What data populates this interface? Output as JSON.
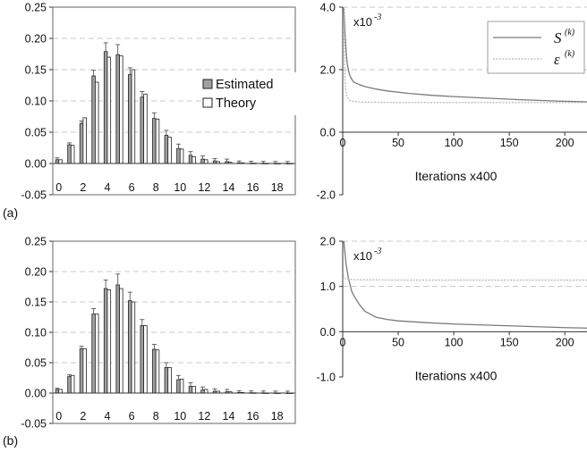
{
  "panels": [
    {
      "label": "(a)"
    },
    {
      "label": "(b)"
    }
  ],
  "chart_data": [
    {
      "id": "a-hist",
      "type": "bar",
      "categories": [
        "0",
        "1",
        "2",
        "3",
        "4",
        "5",
        "6",
        "7",
        "8",
        "9",
        "10",
        "11",
        "12",
        "13",
        "14",
        "15",
        "16",
        "17",
        "18",
        "19"
      ],
      "x_tick_labels": [
        "0",
        "2",
        "4",
        "6",
        "8",
        "10",
        "12",
        "14",
        "16",
        "18"
      ],
      "ylim": [
        -0.05,
        0.25
      ],
      "y_ticks": [
        "-0.05",
        "0.00",
        "0.05",
        "0.10",
        "0.15",
        "0.20",
        "0.25"
      ],
      "grid": true,
      "legend_position": "right",
      "series": [
        {
          "name": "Estimated",
          "color": "#a0a0a0",
          "values": [
            0.006,
            0.03,
            0.064,
            0.14,
            0.179,
            0.174,
            0.142,
            0.106,
            0.072,
            0.045,
            0.024,
            0.013,
            0.007,
            0.004,
            0.003,
            0.001,
            0.0005,
            0.0003,
            0.0002,
            0.0001
          ],
          "errors": [
            0.003,
            0.003,
            0.004,
            0.009,
            0.014,
            0.016,
            0.011,
            0.009,
            0.009,
            0.008,
            0.007,
            0.006,
            0.005,
            0.004,
            0.004,
            0.003,
            0.003,
            0.003,
            0.003,
            0.003
          ]
        },
        {
          "name": "Theory",
          "color": "#ffffff",
          "values": [
            0.006,
            0.029,
            0.073,
            0.13,
            0.17,
            0.172,
            0.15,
            0.111,
            0.071,
            0.042,
            0.023,
            0.011,
            0.006,
            0.003,
            0.002,
            0.001,
            0.0004,
            0.0002,
            0.0001,
            0.0001
          ]
        }
      ]
    },
    {
      "id": "a-conv",
      "type": "line",
      "xlabel": "Iterations x400",
      "xlim": [
        0,
        220
      ],
      "ylim": [
        -2.0,
        4.0
      ],
      "x_ticks": [
        "0",
        "50",
        "100",
        "150",
        "200"
      ],
      "y_ticks": [
        "-2.0",
        "0.0",
        "2.0",
        "4.0"
      ],
      "y_scale_note": "x10",
      "y_scale_exp": "-3",
      "grid": true,
      "legend_position": "top-right",
      "series": [
        {
          "name": "S",
          "name_sup": "(k)",
          "color": "#7a7a7a",
          "dash": "",
          "points": [
            [
              1,
              4.0
            ],
            [
              2,
              3.2
            ],
            [
              3,
              2.6
            ],
            [
              4,
              2.2
            ],
            [
              6,
              1.85
            ],
            [
              8,
              1.7
            ],
            [
              10,
              1.6
            ],
            [
              15,
              1.52
            ],
            [
              20,
              1.46
            ],
            [
              30,
              1.38
            ],
            [
              40,
              1.32
            ],
            [
              60,
              1.24
            ],
            [
              80,
              1.18
            ],
            [
              100,
              1.14
            ],
            [
              130,
              1.09
            ],
            [
              160,
              1.04
            ],
            [
              190,
              1.0
            ],
            [
              220,
              0.97
            ]
          ]
        },
        {
          "name": "ε",
          "name_sup": "(k)",
          "color": "#b8b8b8",
          "dash": "2 1.5",
          "points": [
            [
              1,
              4.0
            ],
            [
              1.5,
              2.6
            ],
            [
              2,
              1.7
            ],
            [
              3,
              1.3
            ],
            [
              4,
              1.12
            ],
            [
              6,
              1.02
            ],
            [
              10,
              0.98
            ],
            [
              20,
              0.96
            ],
            [
              50,
              0.95
            ],
            [
              100,
              0.95
            ],
            [
              150,
              0.95
            ],
            [
              220,
              0.95
            ]
          ]
        }
      ]
    },
    {
      "id": "b-hist",
      "type": "bar",
      "categories": [
        "0",
        "1",
        "2",
        "3",
        "4",
        "5",
        "6",
        "7",
        "8",
        "9",
        "10",
        "11",
        "12",
        "13",
        "14",
        "15",
        "16",
        "17",
        "18",
        "19"
      ],
      "x_tick_labels": [
        "0",
        "2",
        "4",
        "6",
        "8",
        "10",
        "12",
        "14",
        "16",
        "18"
      ],
      "ylim": [
        -0.05,
        0.25
      ],
      "y_ticks": [
        "-0.05",
        "0.00",
        "0.05",
        "0.10",
        "0.15",
        "0.20",
        "0.25"
      ],
      "grid": true,
      "series": [
        {
          "name": "Estimated",
          "color": "#a0a0a0",
          "values": [
            0.006,
            0.027,
            0.073,
            0.13,
            0.172,
            0.178,
            0.152,
            0.111,
            0.072,
            0.042,
            0.022,
            0.011,
            0.005,
            0.003,
            0.002,
            0.001,
            0.0005,
            0.0003,
            0.0002,
            0.0001
          ],
          "errors": [
            0.002,
            0.003,
            0.004,
            0.009,
            0.014,
            0.018,
            0.014,
            0.01,
            0.008,
            0.008,
            0.007,
            0.006,
            0.005,
            0.004,
            0.004,
            0.003,
            0.003,
            0.003,
            0.003,
            0.003
          ]
        },
        {
          "name": "Theory",
          "color": "#ffffff",
          "values": [
            0.006,
            0.029,
            0.073,
            0.13,
            0.17,
            0.172,
            0.15,
            0.111,
            0.071,
            0.042,
            0.023,
            0.011,
            0.006,
            0.003,
            0.002,
            0.001,
            0.0004,
            0.0002,
            0.0001,
            0.0001
          ]
        }
      ]
    },
    {
      "id": "b-conv",
      "type": "line",
      "xlabel": "Iterations x400",
      "xlim": [
        0,
        220
      ],
      "ylim": [
        -1.0,
        2.0
      ],
      "x_ticks": [
        "0",
        "50",
        "100",
        "150",
        "200"
      ],
      "y_ticks": [
        "-1.0",
        "0.0",
        "1.0",
        "2.0"
      ],
      "y_scale_note": "x10",
      "y_scale_exp": "-3",
      "grid": true,
      "series": [
        {
          "name": "S",
          "color": "#7a7a7a",
          "dash": "",
          "points": [
            [
              1,
              2.0
            ],
            [
              3,
              1.5
            ],
            [
              5,
              1.2
            ],
            [
              8,
              0.9
            ],
            [
              10,
              0.8
            ],
            [
              15,
              0.6
            ],
            [
              20,
              0.45
            ],
            [
              30,
              0.32
            ],
            [
              40,
              0.27
            ],
            [
              50,
              0.24
            ],
            [
              75,
              0.2
            ],
            [
              100,
              0.17
            ],
            [
              150,
              0.13
            ],
            [
              200,
              0.09
            ],
            [
              220,
              0.08
            ]
          ]
        },
        {
          "name": "ε",
          "color": "#b8b8b8",
          "dash": "2 1.5",
          "points": [
            [
              0.5,
              1.25
            ],
            [
              1,
              1.2
            ],
            [
              3,
              1.17
            ],
            [
              10,
              1.15
            ],
            [
              50,
              1.14
            ],
            [
              100,
              1.14
            ],
            [
              150,
              1.14
            ],
            [
              220,
              1.14
            ]
          ]
        }
      ]
    }
  ]
}
